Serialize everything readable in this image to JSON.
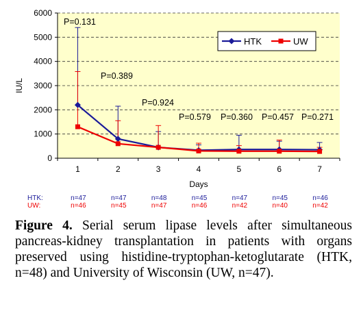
{
  "chart_data": {
    "type": "line",
    "categories": [
      "1",
      "2",
      "3",
      "4",
      "5",
      "6",
      "7"
    ],
    "xlabel": "Days",
    "ylabel": "IU/L",
    "ylim": [
      0,
      6000
    ],
    "yticks": [
      "0",
      "1000",
      "2000",
      "3000",
      "4000",
      "5000",
      "6000"
    ],
    "grid": "horizontal-dashed",
    "legend_position": "top-right",
    "series": [
      {
        "name": "HTK",
        "color": "#1a1a99",
        "values": [
          2200,
          800,
          450,
          330,
          360,
          360,
          350
        ],
        "error_upper": [
          5400,
          2150,
          1100,
          550,
          950,
          700,
          650
        ],
        "n_label": "HTK:",
        "n": [
          "n=47",
          "n=47",
          "n=48",
          "n=45",
          "n=47",
          "n=45",
          "n=46"
        ]
      },
      {
        "name": "UW",
        "color": "#ee0000",
        "values": [
          1300,
          600,
          450,
          300,
          290,
          290,
          280
        ],
        "error_upper": [
          3580,
          1550,
          1350,
          620,
          520,
          750,
          450
        ],
        "n_label": "UW:",
        "n": [
          "n=46",
          "n=45",
          "n=47",
          "n=46",
          "n=42",
          "n=40",
          "n=42"
        ]
      }
    ],
    "annotations": [
      {
        "text": "P=0.131",
        "day": 1
      },
      {
        "text": "P=0.389",
        "day": 2
      },
      {
        "text": "P=0.924",
        "day": 3
      },
      {
        "text": "P=0.579",
        "day": 4
      },
      {
        "text": "P=0.360",
        "day": 5
      },
      {
        "text": "P=0.457",
        "day": 6
      },
      {
        "text": "P=0.271",
        "day": 7
      }
    ]
  },
  "caption": {
    "label": "Figure 4.",
    "text": " Serial serum lipase levels after simultaneous pancreas-kidney transplantation in patients with organs preserved using histidine-tryptophan-ketoglutarate (HTK, n=48) and University of Wisconsin (UW, n=47)."
  }
}
